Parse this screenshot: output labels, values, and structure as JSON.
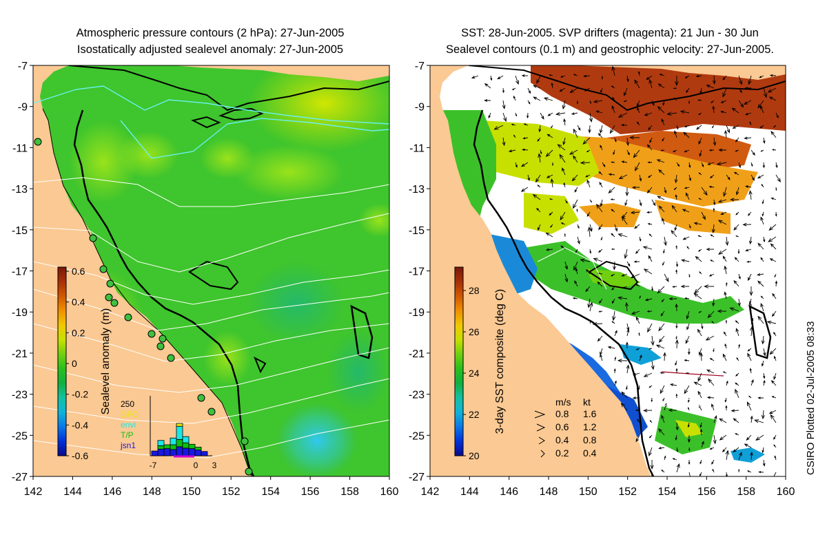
{
  "left_panel": {
    "title_line1": "Atmospheric pressure contours (2 hPa): 27-Jun-2005",
    "title_line2": "Isostatically adjusted sealevel anomaly: 27-Jun-2005",
    "colorbar": {
      "label": "Sealevel anomaly (m)",
      "ticks": [
        "0.6",
        "0.4",
        "0.2",
        "0",
        "-0.2",
        "-0.4",
        "-0.6"
      ],
      "colors": [
        "#0a0a8c",
        "#0030d8",
        "#0a78e8",
        "#10b4d8",
        "#14c0a0",
        "#10b040",
        "#28c01c",
        "#70d010",
        "#c8e000",
        "#f0c800",
        "#f09000",
        "#d05800",
        "#a83008",
        "#781808"
      ]
    },
    "histogram": {
      "y_max_label": "250",
      "legend": [
        {
          "label": "GFO",
          "color": "#e8e800"
        },
        {
          "label": "envi",
          "color": "#18e8e8"
        },
        {
          "label": "T/P",
          "color": "#10c010"
        },
        {
          "label": "jsn1",
          "color": "#1818e0"
        }
      ],
      "x_ticks": [
        "-7",
        "0",
        "3"
      ],
      "bars": [
        {
          "jsn1": 20,
          "T/P": 0,
          "envi": 0,
          "GFO": 0
        },
        {
          "jsn1": 28,
          "T/P": 14,
          "envi": 22,
          "GFO": 0
        },
        {
          "jsn1": 30,
          "T/P": 16,
          "envi": 0,
          "GFO": 0
        },
        {
          "jsn1": 26,
          "T/P": 20,
          "envi": 28,
          "GFO": 0
        },
        {
          "jsn1": 38,
          "T/P": 30,
          "envi": 55,
          "GFO": 12
        },
        {
          "jsn1": 32,
          "T/P": 22,
          "envi": 26,
          "GFO": 0
        },
        {
          "jsn1": 30,
          "T/P": 18,
          "envi": 0,
          "GFO": 0
        },
        {
          "jsn1": 24,
          "T/P": 12,
          "envi": 0,
          "GFO": 0
        },
        {
          "jsn1": 18,
          "T/P": 0,
          "envi": 0,
          "GFO": 0
        }
      ]
    }
  },
  "right_panel": {
    "title_line1": "SST: 28-Jun-2005. SVP drifters (magenta): 21 Jun - 30 Jun",
    "title_line2": "Sealevel contours (0.1 m) and geostrophic velocity: 27-Jun-2005.",
    "colorbar": {
      "label": "3-day SST composite (deg C)",
      "ticks": [
        "28",
        "26",
        "24",
        "22",
        "20"
      ],
      "colors": [
        "#0a0a8c",
        "#0030d8",
        "#0a78e8",
        "#10b4d8",
        "#14c0a0",
        "#10b040",
        "#28c01c",
        "#70d010",
        "#c8e000",
        "#f0c800",
        "#f09000",
        "#d05800",
        "#a83008",
        "#781808"
      ]
    },
    "velocity_legend": {
      "header_ms": "m/s",
      "header_kt": "kt",
      "rows": [
        {
          "ms": "0.8",
          "kt": "1.6"
        },
        {
          "ms": "0.6",
          "kt": "1.2"
        },
        {
          "ms": "0.4",
          "kt": "0.8"
        },
        {
          "ms": "0.2",
          "kt": "0.4"
        }
      ]
    }
  },
  "axes": {
    "lat_ticks": [
      "-7",
      "-9",
      "-11",
      "-13",
      "-15",
      "-17",
      "-19",
      "-21",
      "-23",
      "-25",
      "-27"
    ],
    "lon_ticks": [
      "142",
      "144",
      "146",
      "148",
      "150",
      "152",
      "154",
      "156",
      "158",
      "160"
    ]
  },
  "credit": "CSIRO Plotted 02-Jul-2005 08:33",
  "colors": {
    "land": "#fbc993",
    "ocean_green": "#3fc52d",
    "ocean_light": "#8ee019",
    "cloud_white": "#ffffff",
    "drifters": "#d000d0"
  }
}
